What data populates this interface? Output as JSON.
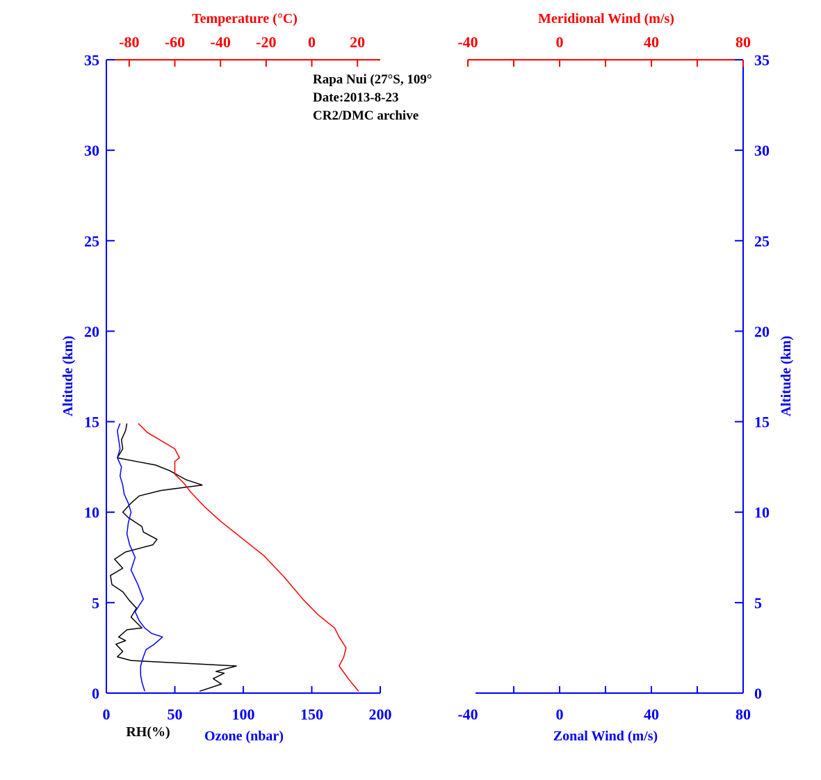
{
  "colors": {
    "rh": "#000000",
    "ozone": "#0000ff",
    "temperature": "#ff0000",
    "axes_blue": "#0000ff",
    "axes_red": "#ff0000"
  },
  "annotation": {
    "line1": "Rapa Nui (27°S, 109°",
    "line2": "Date:2013-8-23",
    "line3": "CR2/DMC archive"
  },
  "chart_data": [
    {
      "type": "line",
      "panel": "left",
      "ylabel": "Altitude (km)",
      "ylim": [
        0,
        35
      ],
      "yticks": [
        0,
        5,
        10,
        15,
        20,
        25,
        30,
        35
      ],
      "ytick_labels": [
        "0",
        "5",
        "10",
        "15",
        "20",
        "25",
        "30",
        "35"
      ],
      "xlabel_bottom": "Ozone (nbar)",
      "xlabel_rh": "RH(%)",
      "xlim_bottom": [
        0,
        200
      ],
      "xticks_bottom": [
        0,
        50,
        100,
        150,
        200
      ],
      "xtick_labels_bottom": [
        "0",
        "50",
        "100",
        "150",
        "200"
      ],
      "xlabel_top": "Temperature (°C)",
      "xlim_top": [
        -90,
        30
      ],
      "xticks_top": [
        -80,
        -60,
        -40,
        -20,
        0,
        20
      ],
      "xtick_labels_top": [
        "-80",
        "-60",
        "-40",
        "-20",
        "0",
        "20"
      ],
      "series": [
        {
          "name": "RH(%)",
          "axis": "bottom",
          "points": [
            [
              68,
              0.1
            ],
            [
              84,
              0.5
            ],
            [
              78,
              0.8
            ],
            [
              86,
              1.1
            ],
            [
              80,
              1.2
            ],
            [
              95,
              1.5
            ],
            [
              18,
              1.8
            ],
            [
              8,
              2.0
            ],
            [
              12,
              2.3
            ],
            [
              7,
              2.7
            ],
            [
              14,
              2.9
            ],
            [
              9,
              3.1
            ],
            [
              15,
              3.5
            ],
            [
              26,
              3.6
            ],
            [
              22,
              3.9
            ],
            [
              18,
              4.2
            ],
            [
              22,
              4.7
            ],
            [
              17,
              5.1
            ],
            [
              12,
              5.6
            ],
            [
              4,
              6.0
            ],
            [
              3,
              6.5
            ],
            [
              12,
              6.9
            ],
            [
              6,
              7.4
            ],
            [
              14,
              7.8
            ],
            [
              24,
              8.0
            ],
            [
              34,
              8.2
            ],
            [
              37,
              8.5
            ],
            [
              27,
              8.9
            ],
            [
              26,
              9.2
            ],
            [
              22,
              9.4
            ],
            [
              16,
              9.7
            ],
            [
              12,
              10.0
            ],
            [
              18,
              10.5
            ],
            [
              24,
              10.9
            ],
            [
              40,
              11.2
            ],
            [
              70,
              11.5
            ],
            [
              58,
              11.8
            ],
            [
              46,
              12.3
            ],
            [
              36,
              12.6
            ],
            [
              22,
              12.8
            ],
            [
              8,
              13.0
            ],
            [
              12,
              13.5
            ],
            [
              11,
              14.0
            ],
            [
              14,
              14.5
            ],
            [
              15,
              14.9
            ]
          ]
        },
        {
          "name": "Ozone (nbar)",
          "axis": "bottom",
          "points": [
            [
              28,
              0.1
            ],
            [
              26,
              0.6
            ],
            [
              25,
              1.0
            ],
            [
              25,
              1.5
            ],
            [
              27,
              2.0
            ],
            [
              29,
              2.4
            ],
            [
              35,
              2.7
            ],
            [
              41,
              3.1
            ],
            [
              33,
              3.3
            ],
            [
              28,
              3.6
            ],
            [
              24,
              4.0
            ],
            [
              21,
              4.5
            ],
            [
              27,
              5.2
            ],
            [
              23,
              6.0
            ],
            [
              18,
              6.8
            ],
            [
              21,
              7.5
            ],
            [
              17,
              8.2
            ],
            [
              15,
              8.8
            ],
            [
              16,
              9.4
            ],
            [
              18,
              10.0
            ],
            [
              16,
              10.5
            ],
            [
              13,
              11.0
            ],
            [
              12,
              11.5
            ],
            [
              10,
              12.0
            ],
            [
              11,
              12.5
            ],
            [
              8,
              13.0
            ],
            [
              10,
              13.5
            ],
            [
              9,
              14.0
            ],
            [
              8,
              14.5
            ],
            [
              10,
              14.9
            ]
          ]
        },
        {
          "name": "Temperature (°C)",
          "axis": "top",
          "points": [
            [
              20.5,
              0.1
            ],
            [
              16,
              0.8
            ],
            [
              12,
              1.5
            ],
            [
              14,
              2.0
            ],
            [
              15,
              2.5
            ],
            [
              12,
              3.1
            ],
            [
              10,
              3.6
            ],
            [
              3,
              4.3
            ],
            [
              -4,
              5.2
            ],
            [
              -12,
              6.4
            ],
            [
              -21,
              7.6
            ],
            [
              -30,
              8.5
            ],
            [
              -40,
              9.5
            ],
            [
              -47,
              10.3
            ],
            [
              -53,
              11.1
            ],
            [
              -56,
              11.6
            ],
            [
              -60,
              12.1
            ],
            [
              -60,
              12.8
            ],
            [
              -58,
              13.0
            ],
            [
              -60,
              13.5
            ],
            [
              -72,
              14.4
            ],
            [
              -76,
              14.9
            ]
          ]
        }
      ]
    },
    {
      "type": "line",
      "panel": "right",
      "ylabel": "Altitude (km)",
      "ylim": [
        0,
        35
      ],
      "yticks": [
        0,
        5,
        10,
        15,
        20,
        25,
        30,
        35
      ],
      "ytick_labels": [
        "0",
        "5",
        "10",
        "15",
        "20",
        "25",
        "30",
        "35"
      ],
      "xlabel_bottom": "Zonal Wind (m/s)",
      "xlim_bottom": [
        -40,
        80
      ],
      "xticks_bottom": [
        -40,
        0,
        40,
        80
      ],
      "xtick_labels_bottom": [
        "-40",
        "0",
        "40",
        "80"
      ],
      "xlabel_top": "Meridional Wind (m/s)",
      "xlim_top": [
        -40,
        80
      ],
      "xticks_top": [
        -40,
        0,
        40,
        80
      ],
      "xtick_labels_top": [
        "-40",
        "0",
        "40",
        "80"
      ],
      "series": []
    }
  ]
}
